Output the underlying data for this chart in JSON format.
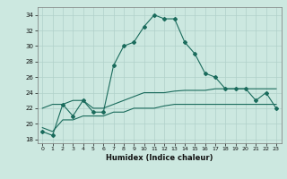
{
  "xlabel": "Humidex (Indice chaleur)",
  "x": [
    0,
    1,
    2,
    3,
    4,
    5,
    6,
    7,
    8,
    9,
    10,
    11,
    12,
    13,
    14,
    15,
    16,
    17,
    18,
    19,
    20,
    21,
    22,
    23
  ],
  "line_main": [
    19,
    18.5,
    22.5,
    21,
    23,
    21.5,
    21.5,
    27.5,
    30,
    30.5,
    32.5,
    34,
    33.5,
    33.5,
    30.5,
    29,
    26.5,
    26,
    24.5,
    24.5,
    24.5,
    23,
    24,
    22
  ],
  "line_upper": [
    22,
    22.5,
    22.5,
    23,
    23,
    22,
    22,
    22.5,
    23,
    23.5,
    24,
    24,
    24,
    24.2,
    24.3,
    24.3,
    24.3,
    24.5,
    24.5,
    24.5,
    24.5,
    24.5,
    24.5,
    24.5
  ],
  "line_lower": [
    19.5,
    19.0,
    20.5,
    20.5,
    21.0,
    21.0,
    21.0,
    21.5,
    21.5,
    22.0,
    22.0,
    22.0,
    22.3,
    22.5,
    22.5,
    22.5,
    22.5,
    22.5,
    22.5,
    22.5,
    22.5,
    22.5,
    22.5,
    22.5
  ],
  "bg_color": "#cce8e0",
  "line_color": "#1a6b5c",
  "grid_color": "#b0d0ca",
  "ylim": [
    17.5,
    35
  ],
  "yticks": [
    18,
    20,
    22,
    24,
    26,
    28,
    30,
    32,
    34
  ],
  "xticks": [
    0,
    1,
    2,
    3,
    4,
    5,
    6,
    7,
    8,
    9,
    10,
    11,
    12,
    13,
    14,
    15,
    16,
    17,
    18,
    19,
    20,
    21,
    22,
    23
  ]
}
